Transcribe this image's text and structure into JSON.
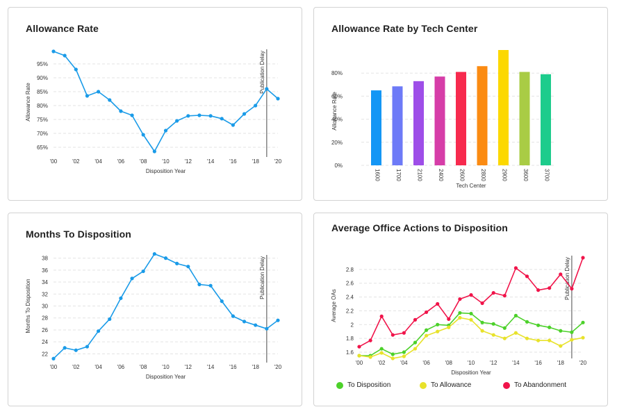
{
  "cards": [
    {
      "title": "Allowance Rate"
    },
    {
      "title": "Allowance Rate by Tech Center"
    },
    {
      "title": "Months To Disposition"
    },
    {
      "title": "Average Office Actions to Disposition"
    }
  ],
  "colors": {
    "line": "#1a9be8",
    "to_disposition": "#4cd12a",
    "to_allowance": "#e8e22b",
    "to_abandonment": "#f0144a",
    "delay_line": "#666666"
  },
  "chart_data": [
    {
      "type": "line",
      "title": "Allowance Rate",
      "xlabel": "Disposition Year",
      "ylabel": "Allowance Rate",
      "x": [
        2000,
        2001,
        2002,
        2003,
        2004,
        2005,
        2006,
        2007,
        2008,
        2009,
        2010,
        2011,
        2012,
        2013,
        2014,
        2015,
        2016,
        2017,
        2018,
        2019,
        2020
      ],
      "values": [
        99.5,
        98,
        93,
        83.5,
        85,
        82,
        78,
        76.5,
        69.5,
        63.5,
        71,
        74.5,
        76.3,
        76.5,
        76.3,
        75.3,
        73,
        77,
        80,
        86,
        82.5
      ],
      "ylim": [
        62.5,
        100
      ],
      "yticks": [
        "65%",
        "70%",
        "75%",
        "80%",
        "85%",
        "90%",
        "95%"
      ],
      "ytick_values": [
        65,
        70,
        75,
        80,
        85,
        90,
        95
      ],
      "xticks": [
        "'00",
        "'02",
        "'04",
        "'06",
        "'08",
        "'10",
        "'12",
        "'14",
        "'16",
        "'18",
        "'20"
      ],
      "annotation": {
        "label": "Publication Delay",
        "x": 2019
      },
      "grid": true
    },
    {
      "type": "bar",
      "title": "Allowance Rate by Tech Center",
      "xlabel": "Tech Center",
      "ylabel": "Allowance Rate",
      "categories": [
        "1600",
        "1700",
        "2100",
        "2400",
        "2600",
        "2800",
        "2900",
        "3600",
        "3700"
      ],
      "values": [
        65,
        68.5,
        73,
        77,
        81,
        86,
        100,
        81,
        79
      ],
      "bar_colors": [
        "#1496f5",
        "#6d7af7",
        "#9e4ee8",
        "#d63da8",
        "#f72a4e",
        "#fb8b12",
        "#fcd800",
        "#a9cc45",
        "#1dcc8c"
      ],
      "ylim": [
        0,
        100
      ],
      "yticks": [
        "0%",
        "20%",
        "40%",
        "60%",
        "80%"
      ],
      "ytick_values": [
        0,
        20,
        40,
        60,
        80
      ],
      "grid": true
    },
    {
      "type": "line",
      "title": "Months To Disposition",
      "xlabel": "Disposition Year",
      "ylabel": "Months To Disposition",
      "x": [
        2000,
        2001,
        2002,
        2003,
        2004,
        2005,
        2006,
        2007,
        2008,
        2009,
        2010,
        2011,
        2012,
        2013,
        2014,
        2015,
        2016,
        2017,
        2018,
        2019,
        2020
      ],
      "values": [
        21.2,
        23,
        22.6,
        23.2,
        25.8,
        27.8,
        31.3,
        34.6,
        35.8,
        38.7,
        38,
        37.1,
        36.6,
        33.6,
        33.4,
        30.8,
        28.3,
        27.4,
        26.8,
        26.2,
        27.6
      ],
      "ylim": [
        21,
        39
      ],
      "yticks": [
        "22",
        "24",
        "26",
        "28",
        "30",
        "32",
        "34",
        "36",
        "38"
      ],
      "ytick_values": [
        22,
        24,
        26,
        28,
        30,
        32,
        34,
        36,
        38
      ],
      "xticks": [
        "'00",
        "'02",
        "'04",
        "'06",
        "'08",
        "'10",
        "'12",
        "'14",
        "'16",
        "'18",
        "'20"
      ],
      "annotation": {
        "label": "Publication Delay",
        "x": 2019
      },
      "grid": true
    },
    {
      "type": "line",
      "title": "Average Office Actions to Disposition",
      "xlabel": "Disposition Year",
      "ylabel": "Average OAs",
      "x": [
        2000,
        2001,
        2002,
        2003,
        2004,
        2005,
        2006,
        2007,
        2008,
        2009,
        2010,
        2011,
        2012,
        2013,
        2014,
        2015,
        2016,
        2017,
        2018,
        2019,
        2020
      ],
      "series": [
        {
          "name": "To Disposition",
          "color": "#4cd12a",
          "values": [
            1.55,
            1.55,
            1.65,
            1.57,
            1.6,
            1.74,
            1.92,
            2.0,
            1.99,
            2.17,
            2.16,
            2.03,
            2.01,
            1.95,
            2.13,
            2.04,
            1.99,
            1.96,
            1.91,
            1.89,
            2.03
          ]
        },
        {
          "name": "To Allowance",
          "color": "#e8e22b",
          "values": [
            1.55,
            1.53,
            1.59,
            1.51,
            1.54,
            1.65,
            1.84,
            1.9,
            1.96,
            2.1,
            2.07,
            1.91,
            1.85,
            1.8,
            1.88,
            1.8,
            1.77,
            1.77,
            1.69,
            1.78,
            1.81
          ]
        },
        {
          "name": "To Abandonment",
          "color": "#f0144a",
          "values": [
            1.68,
            1.77,
            2.12,
            1.85,
            1.88,
            2.07,
            2.18,
            2.3,
            2.08,
            2.37,
            2.43,
            2.31,
            2.46,
            2.42,
            2.82,
            2.7,
            2.5,
            2.53,
            2.73,
            2.52,
            2.97
          ]
        }
      ],
      "ylim": [
        1.55,
        3.0
      ],
      "yticks": [
        "1.6",
        "1.8",
        "2",
        "2.2",
        "2.4",
        "2.6",
        "2.8"
      ],
      "ytick_values": [
        1.6,
        1.8,
        2.0,
        2.2,
        2.4,
        2.6,
        2.8
      ],
      "xticks": [
        "'00",
        "'02",
        "'04",
        "'06",
        "'08",
        "'10",
        "'12",
        "'14",
        "'16",
        "'18",
        "'20"
      ],
      "annotation": {
        "label": "Publication Delay",
        "x": 2019
      },
      "legend": "bottom",
      "grid": true
    }
  ]
}
